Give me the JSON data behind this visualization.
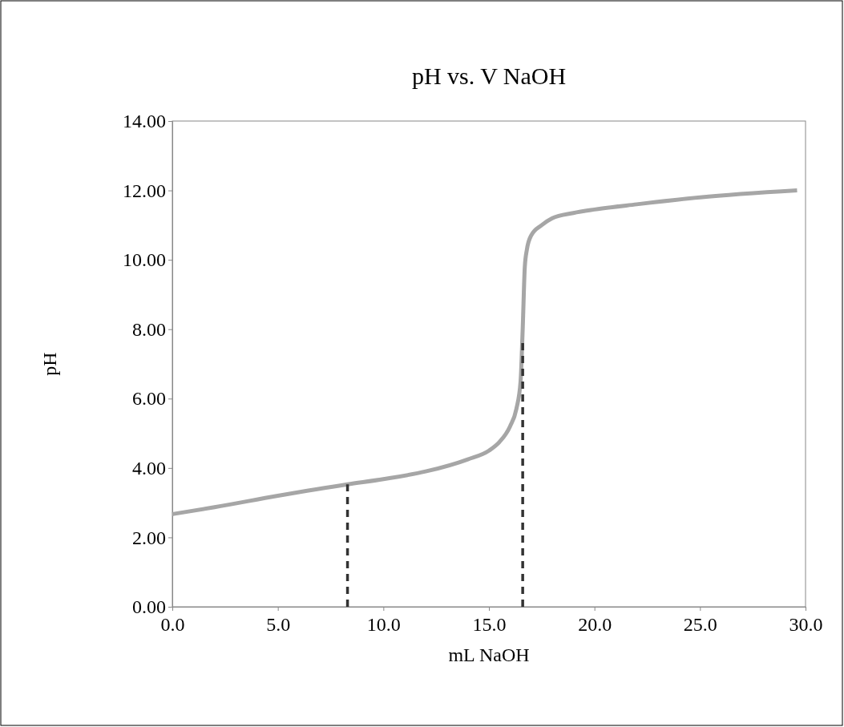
{
  "chart_data": {
    "type": "line",
    "title": "pH vs. V NaOH",
    "xlabel": "mL NaOH",
    "ylabel": "pH",
    "xlim": [
      0,
      30
    ],
    "xticks": [
      {
        "value": 0,
        "label": "0.0"
      },
      {
        "value": 5,
        "label": "5.0"
      },
      {
        "value": 10,
        "label": "10.0"
      },
      {
        "value": 15,
        "label": "15.0"
      },
      {
        "value": 20,
        "label": "20.0"
      },
      {
        "value": 25,
        "label": "25.0"
      },
      {
        "value": 30,
        "label": "30.0"
      }
    ],
    "ylim": [
      0,
      14
    ],
    "yticks": [
      {
        "value": 0,
        "label": "0.00"
      },
      {
        "value": 2,
        "label": "2.00"
      },
      {
        "value": 4,
        "label": "4.00"
      },
      {
        "value": 6,
        "label": "6.00"
      },
      {
        "value": 8,
        "label": "8.00"
      },
      {
        "value": 10,
        "label": "10.00"
      },
      {
        "value": 12,
        "label": "12.00"
      },
      {
        "value": 14,
        "label": "14.00"
      }
    ],
    "series": [
      {
        "color": "#a6a6a6",
        "line_style": "solid",
        "x": [
          0,
          2,
          5,
          8.3,
          10,
          12,
          14,
          15,
          15.5,
          16,
          16.3,
          16.5,
          16.6,
          16.7,
          16.8,
          17,
          17.5,
          18,
          19,
          20,
          22,
          25,
          29.6
        ],
        "values": [
          2.67,
          2.87,
          3.2,
          3.53,
          3.68,
          3.9,
          4.25,
          4.5,
          4.75,
          5.2,
          5.7,
          6.5,
          8,
          9.8,
          10.3,
          10.7,
          11,
          11.2,
          11.35,
          11.45,
          11.6,
          11.8,
          12
        ]
      },
      {
        "color": "#333333",
        "line_style": "dashed",
        "x": [
          8.3,
          8.3
        ],
        "values": [
          0,
          3.53
        ]
      },
      {
        "color": "#333333",
        "line_style": "dashed",
        "x": [
          16.6,
          16.6
        ],
        "values": [
          0,
          7.7
        ]
      }
    ]
  }
}
